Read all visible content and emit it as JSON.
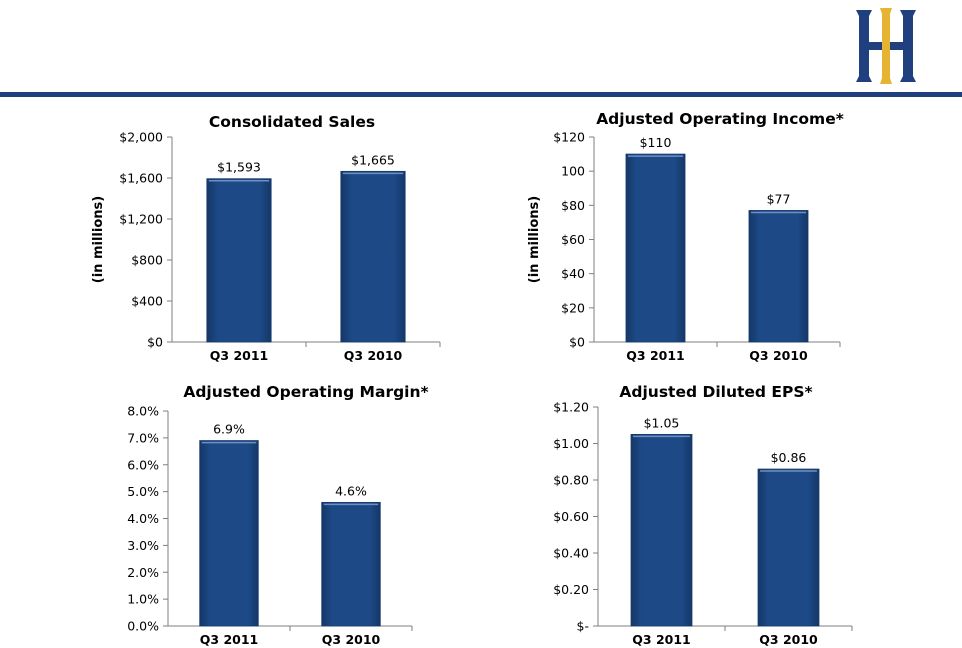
{
  "colors": {
    "brand_navy": "#1f3f7f",
    "brand_gold": "#e7b332",
    "bar_fill": "#1d4a87"
  },
  "header": {
    "logo_icon": "hii-logo-icon"
  },
  "chart_data": [
    {
      "type": "bar",
      "title": "Consolidated Sales",
      "ylabel": "(in millions)",
      "categories": [
        "Q3 2011",
        "Q3 2010"
      ],
      "values": [
        1593,
        1665
      ],
      "data_labels": [
        "$1,593",
        "$1,665"
      ],
      "ylim": [
        0,
        2000
      ],
      "yticks": [
        0,
        400,
        800,
        1200,
        1600,
        2000
      ],
      "ytick_labels": [
        "$0",
        "$400",
        "$800",
        "$1,200",
        "$1,600",
        "$2,000"
      ]
    },
    {
      "type": "bar",
      "title": "Adjusted Operating Income*",
      "ylabel": "(in millions)",
      "categories": [
        "Q3 2011",
        "Q3 2010"
      ],
      "values": [
        110,
        77
      ],
      "data_labels": [
        "$110",
        "$77"
      ],
      "ylim": [
        0,
        120
      ],
      "yticks": [
        0,
        20,
        40,
        60,
        80,
        100,
        120
      ],
      "ytick_labels": [
        "$0",
        "$20",
        "$40",
        "$60",
        "$80",
        "100",
        "$120"
      ]
    },
    {
      "type": "bar",
      "title": "Adjusted Operating Margin*",
      "ylabel": "",
      "categories": [
        "Q3 2011",
        "Q3 2010"
      ],
      "values": [
        6.9,
        4.6
      ],
      "data_labels": [
        "6.9%",
        "4.6%"
      ],
      "ylim": [
        0,
        8
      ],
      "yticks": [
        0,
        1,
        2,
        3,
        4,
        5,
        6,
        7,
        8
      ],
      "ytick_labels": [
        "0.0%",
        "1.0%",
        "2.0%",
        "3.0%",
        "4.0%",
        "5.0%",
        "6.0%",
        "7.0%",
        "8.0%"
      ]
    },
    {
      "type": "bar",
      "title": "Adjusted Diluted EPS*",
      "ylabel": "",
      "categories": [
        "Q3 2011",
        "Q3 2010"
      ],
      "values": [
        1.05,
        0.86
      ],
      "data_labels": [
        "$1.05",
        "$0.86"
      ],
      "ylim": [
        0,
        1.2
      ],
      "yticks": [
        0,
        0.2,
        0.4,
        0.6,
        0.8,
        1.0,
        1.2
      ],
      "ytick_labels": [
        "$-",
        "$0.20",
        "$0.40",
        "$0.60",
        "$0.80",
        "$1.00",
        "$1.20"
      ]
    }
  ]
}
